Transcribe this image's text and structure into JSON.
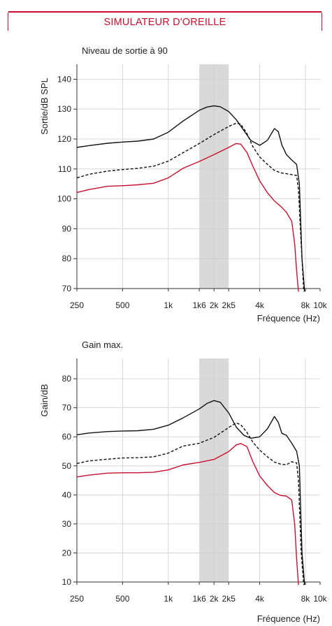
{
  "header": {
    "title": "SIMULATEUR D'OREILLE"
  },
  "colors": {
    "accent": "#c8102e",
    "band": "#d9d9d9",
    "line": "#111111"
  },
  "chart_data": [
    {
      "type": "line",
      "title": "Niveau de sortie à 90",
      "ylabel": "Sortie/dB SPL",
      "xlabel": "Fréquence (Hz)",
      "x_scale": "log",
      "xlim": [
        250,
        10000
      ],
      "ylim": [
        70,
        145
      ],
      "x_ticks": [
        {
          "value": 250,
          "label": "250"
        },
        {
          "value": 500,
          "label": "500"
        },
        {
          "value": 1000,
          "label": "1k"
        },
        {
          "value": 1600,
          "label": "1k6"
        },
        {
          "value": 2000,
          "label": "2k"
        },
        {
          "value": 2500,
          "label": "2k5"
        },
        {
          "value": 4000,
          "label": "4k"
        },
        {
          "value": 8000,
          "label": "8k"
        },
        {
          "value": 10000,
          "label": "10k"
        }
      ],
      "y_ticks": [
        70,
        80,
        90,
        100,
        110,
        120,
        130,
        140
      ],
      "shaded_band": [
        1600,
        2500
      ],
      "grid": true,
      "series": [
        {
          "style": "solid",
          "color": "#111111",
          "x": [
            250,
            300,
            400,
            500,
            630,
            800,
            1000,
            1250,
            1600,
            1800,
            2000,
            2200,
            2500,
            2800,
            3150,
            3500,
            4000,
            4500,
            5000,
            5300,
            5600,
            6000,
            6500,
            7000,
            7300,
            7600,
            7900
          ],
          "y": [
            117.2,
            117.8,
            118.6,
            119,
            119.3,
            120,
            122.3,
            126,
            129.6,
            130.7,
            131.1,
            130.8,
            129.2,
            126.5,
            122.8,
            119.5,
            117.9,
            119.6,
            123.5,
            122.5,
            118,
            114.8,
            113,
            111.5,
            105,
            80,
            69
          ]
        },
        {
          "style": "dashed",
          "color": "#111111",
          "x": [
            250,
            300,
            400,
            500,
            630,
            800,
            1000,
            1250,
            1600,
            2000,
            2500,
            2800,
            3000,
            3300,
            3600,
            4000,
            4500,
            5000,
            5500,
            6000,
            6500,
            7000,
            7200,
            7500,
            7800
          ],
          "y": [
            107,
            108.2,
            109.3,
            109.8,
            110.2,
            110.9,
            112.6,
            115.4,
            118.5,
            121.5,
            124.2,
            125.3,
            125,
            121.8,
            117.5,
            114,
            111.5,
            109.5,
            108.7,
            108.4,
            108.1,
            107.8,
            103,
            85,
            69
          ]
        },
        {
          "style": "solid",
          "color": "#c8102e",
          "x": [
            250,
            300,
            400,
            500,
            630,
            800,
            1000,
            1250,
            1600,
            2000,
            2500,
            2800,
            3000,
            3300,
            3600,
            4000,
            4500,
            5000,
            5500,
            6000,
            6500,
            6800,
            7000,
            7200
          ],
          "y": [
            102.1,
            103.1,
            104.2,
            104.4,
            104.7,
            105.2,
            107,
            110.2,
            112.5,
            114.8,
            117.2,
            118.5,
            118.3,
            115.5,
            111,
            106,
            102,
            99.3,
            97.5,
            95.5,
            92.5,
            85,
            76,
            69
          ]
        }
      ]
    },
    {
      "type": "line",
      "title": "Gain max.",
      "ylabel": "Gain/dB",
      "xlabel": "Fréquence (Hz)",
      "x_scale": "log",
      "xlim": [
        250,
        10000
      ],
      "ylim": [
        10,
        87
      ],
      "x_ticks": [
        {
          "value": 250,
          "label": "250"
        },
        {
          "value": 500,
          "label": "500"
        },
        {
          "value": 1000,
          "label": "1k"
        },
        {
          "value": 1600,
          "label": "1k6"
        },
        {
          "value": 2000,
          "label": "2k"
        },
        {
          "value": 2500,
          "label": "2k5"
        },
        {
          "value": 4000,
          "label": "4k"
        },
        {
          "value": 8000,
          "label": "8k"
        },
        {
          "value": 10000,
          "label": "10k"
        }
      ],
      "y_ticks": [
        10,
        20,
        30,
        40,
        50,
        60,
        70,
        80
      ],
      "shaded_band": [
        1600,
        2500
      ],
      "grid": true,
      "series": [
        {
          "style": "solid",
          "color": "#111111",
          "x": [
            250,
            300,
            400,
            500,
            630,
            800,
            1000,
            1250,
            1600,
            1800,
            2000,
            2200,
            2500,
            2800,
            3150,
            3500,
            4000,
            4500,
            5000,
            5300,
            5600,
            6000,
            6500,
            7000,
            7300,
            7600,
            7900
          ],
          "y": [
            60.7,
            61.3,
            61.8,
            62,
            62.1,
            62.6,
            64,
            66.5,
            69.6,
            71.5,
            72.5,
            71.9,
            68.2,
            63.4,
            60.5,
            59.5,
            60,
            62.8,
            67,
            65,
            61.2,
            60.5,
            57.8,
            55,
            50,
            20,
            9
          ]
        },
        {
          "style": "dashed",
          "color": "#111111",
          "x": [
            250,
            300,
            400,
            500,
            630,
            800,
            1000,
            1250,
            1600,
            2000,
            2500,
            2800,
            3000,
            3300,
            3600,
            4000,
            4500,
            5000,
            5500,
            6000,
            6500,
            7000,
            7200,
            7500,
            7800
          ],
          "y": [
            50.8,
            51.7,
            52.3,
            52.7,
            52.8,
            53.1,
            54.4,
            56.8,
            57.8,
            59.8,
            63.2,
            64.8,
            64.2,
            61.5,
            58.2,
            55.4,
            53.1,
            51.3,
            50.6,
            50.4,
            51.4,
            51,
            45,
            20,
            9
          ]
        },
        {
          "style": "solid",
          "color": "#c8102e",
          "x": [
            250,
            300,
            400,
            500,
            630,
            800,
            1000,
            1250,
            1600,
            2000,
            2500,
            2800,
            3000,
            3300,
            3600,
            4000,
            4500,
            5000,
            5500,
            6000,
            6500,
            6800,
            7000,
            7200
          ],
          "y": [
            46.2,
            46.8,
            47.5,
            47.6,
            47.6,
            47.8,
            48.6,
            50.3,
            51.2,
            52.2,
            54.9,
            57.2,
            57.7,
            56.6,
            51.5,
            46.5,
            43.2,
            40.8,
            39.8,
            39.6,
            38.2,
            30,
            18,
            9
          ]
        }
      ]
    }
  ]
}
